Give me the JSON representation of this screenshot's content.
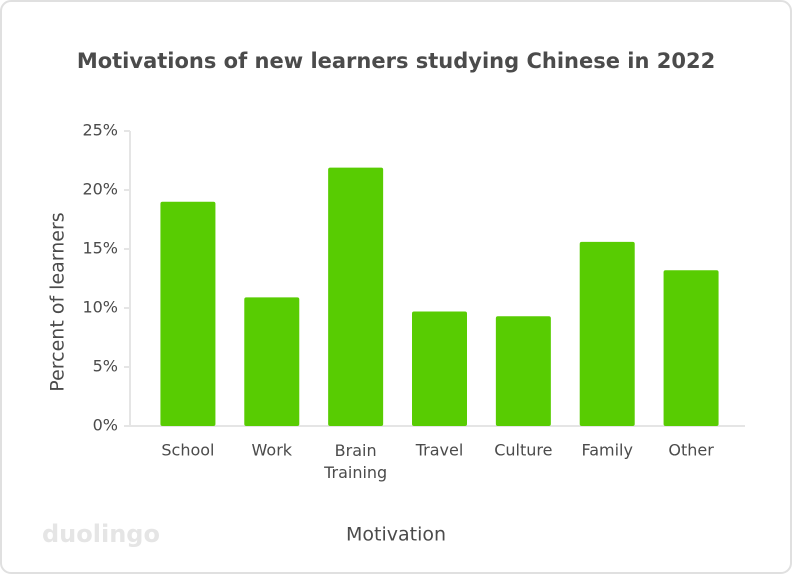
{
  "chart_data": {
    "type": "bar",
    "title": "Motivations of new learners studying Chinese in 2022",
    "x_label": "Motivation",
    "y_label": "Percent of learners",
    "logo": "duolingo",
    "categories": [
      "School",
      "Work",
      "Brain Training",
      "Travel",
      "Culture",
      "Family",
      "Other"
    ],
    "values": [
      19.0,
      10.9,
      21.9,
      9.7,
      9.3,
      15.6,
      13.2
    ],
    "color": "#58cc02",
    "ylim": [
      0,
      25
    ],
    "yticks": [
      {
        "value": 0,
        "label": "0%"
      },
      {
        "value": 5,
        "label": "5%"
      },
      {
        "value": 10,
        "label": "10%"
      },
      {
        "value": 15,
        "label": "15%"
      },
      {
        "value": 20,
        "label": "20%"
      },
      {
        "value": 25,
        "label": "25%"
      }
    ],
    "grid": false
  }
}
